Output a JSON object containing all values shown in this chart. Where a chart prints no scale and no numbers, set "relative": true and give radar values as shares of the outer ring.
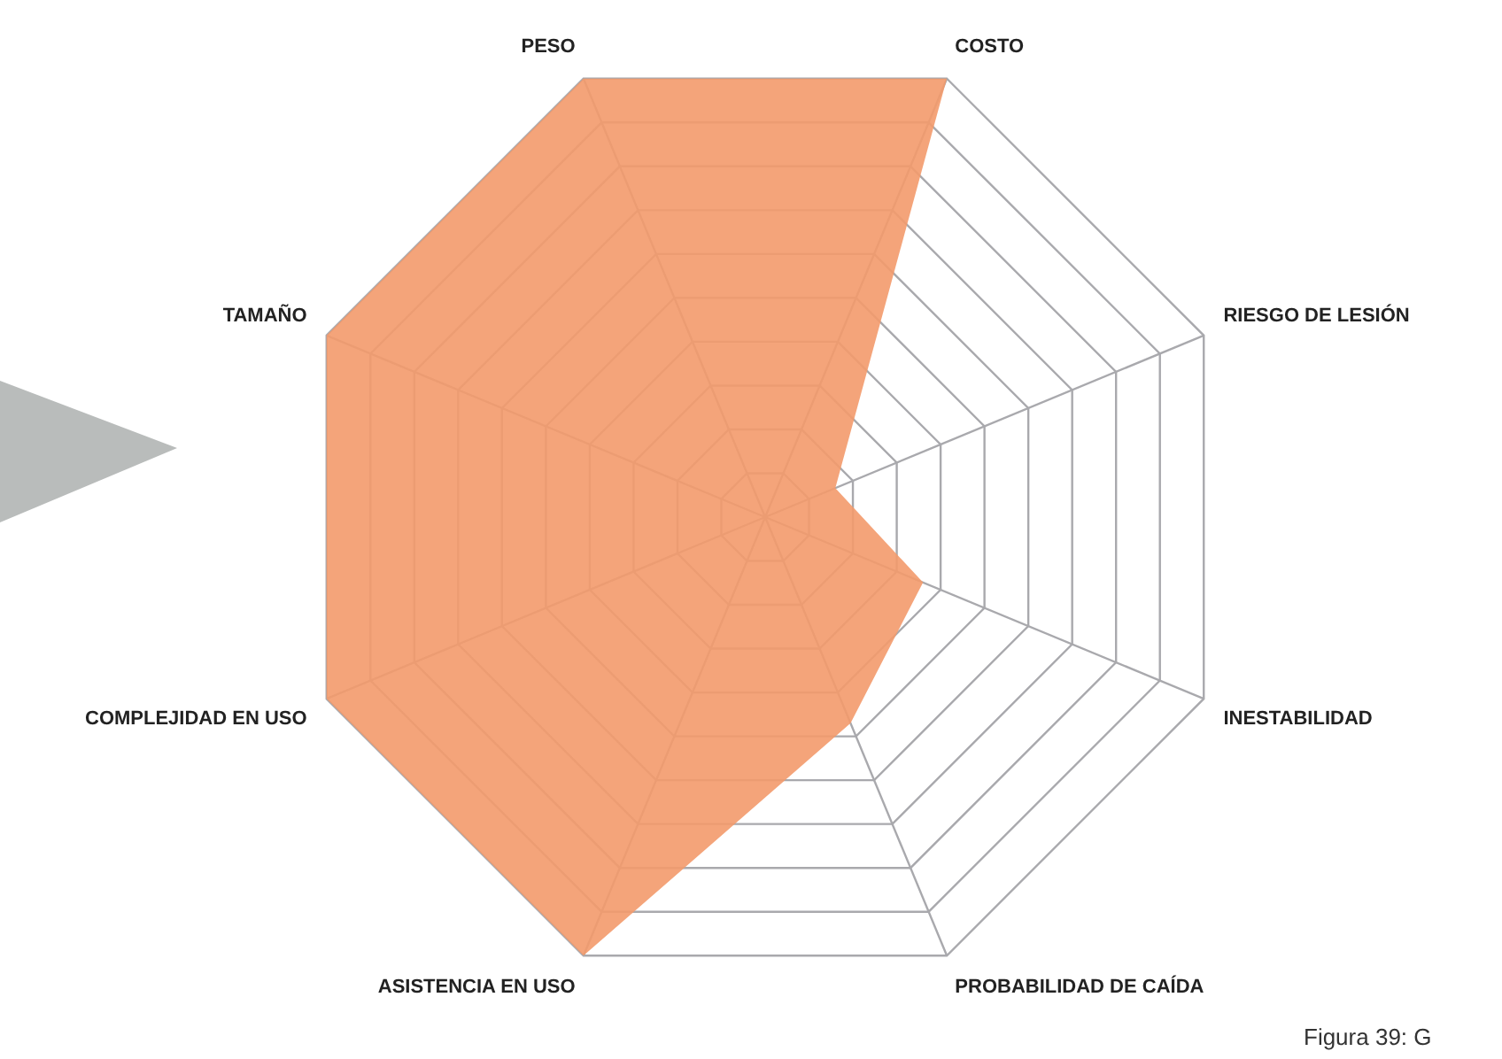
{
  "chart_data": {
    "type": "radar",
    "relative": true,
    "categories": [
      "COSTO",
      "RIESGO DE LESIÓN",
      "INESTABILIDAD",
      "PROBABILIDAD DE CAÍDA",
      "ASISTENCIA EN USO",
      "COMPLEJIDAD EN USO",
      "TAMAÑO",
      "PESO"
    ],
    "series": [
      {
        "color": "#f39a6c",
        "values": [
          1,
          0.16,
          0.36,
          0.47,
          1,
          1,
          1,
          1
        ]
      }
    ],
    "grid": true,
    "legend": false,
    "annotations": [
      "Figura 39: G"
    ]
  }
}
